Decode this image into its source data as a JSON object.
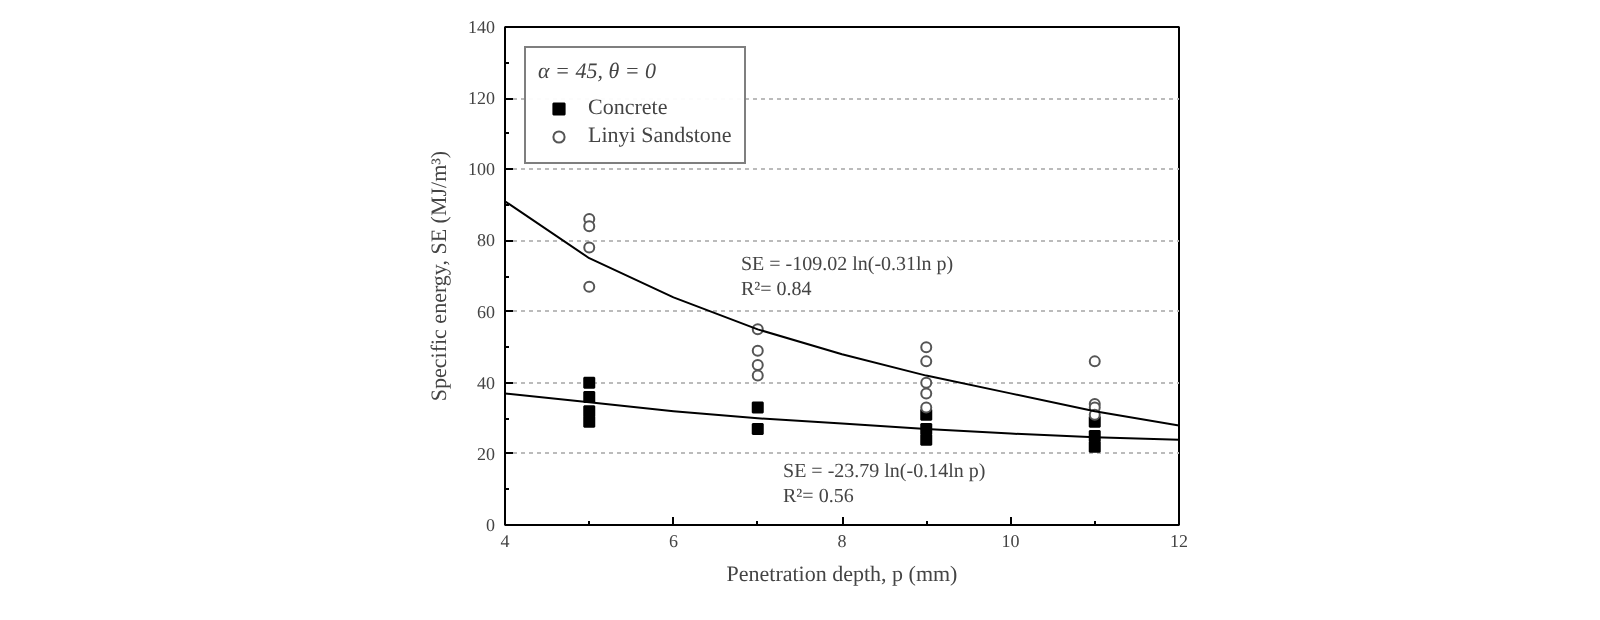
{
  "chart_data": {
    "type": "scatter",
    "xlabel": "Penetration depth, p (mm)",
    "ylabel": "Specific energy, SE (MJ/m³)",
    "legend_title": "α = 45, θ = 0",
    "xlim": [
      4,
      12
    ],
    "xticks": [
      4,
      6,
      8,
      10,
      12
    ],
    "ylim": [
      0,
      140
    ],
    "yticks": [
      0,
      20,
      40,
      60,
      80,
      100,
      120,
      140
    ],
    "grid": "y",
    "legend": "top left",
    "series": [
      {
        "name": "Concrete",
        "marker": "square",
        "color": "#000000",
        "x": [
          5,
          5,
          5,
          5,
          7,
          7,
          9,
          9,
          9,
          11,
          11,
          11
        ],
        "values": [
          40,
          36,
          32,
          29,
          33,
          27,
          31,
          27,
          24,
          29,
          25,
          22
        ]
      },
      {
        "name": "Linyi Sandstone",
        "marker": "circle",
        "color": "#555555",
        "x": [
          5,
          5,
          5,
          5,
          7,
          7,
          7,
          7,
          9,
          9,
          9,
          9,
          9,
          11,
          11,
          11,
          11
        ],
        "values": [
          86,
          84,
          78,
          67,
          55,
          49,
          45,
          42,
          50,
          46,
          40,
          37,
          33,
          46,
          34,
          33,
          31
        ]
      },
      {
        "type": "line",
        "marker": "none",
        "color": "#000000",
        "x": [
          4,
          5,
          6,
          7,
          8,
          9,
          10,
          11,
          12
        ],
        "values": [
          91,
          75,
          64,
          55,
          48,
          42,
          37,
          32,
          28
        ]
      },
      {
        "type": "line",
        "marker": "none",
        "color": "#000000",
        "x": [
          4,
          5,
          6,
          7,
          8,
          9,
          10,
          11,
          12
        ],
        "values": [
          37,
          34.5,
          32,
          30,
          28.5,
          27,
          25.7,
          24.7,
          24
        ]
      }
    ],
    "annotations": [
      "SE = -109.02 ln(-0.31ln p)",
      "R²= 0.84",
      "SE = -23.79 ln(-0.14ln p)",
      "R²= 0.56"
    ]
  }
}
